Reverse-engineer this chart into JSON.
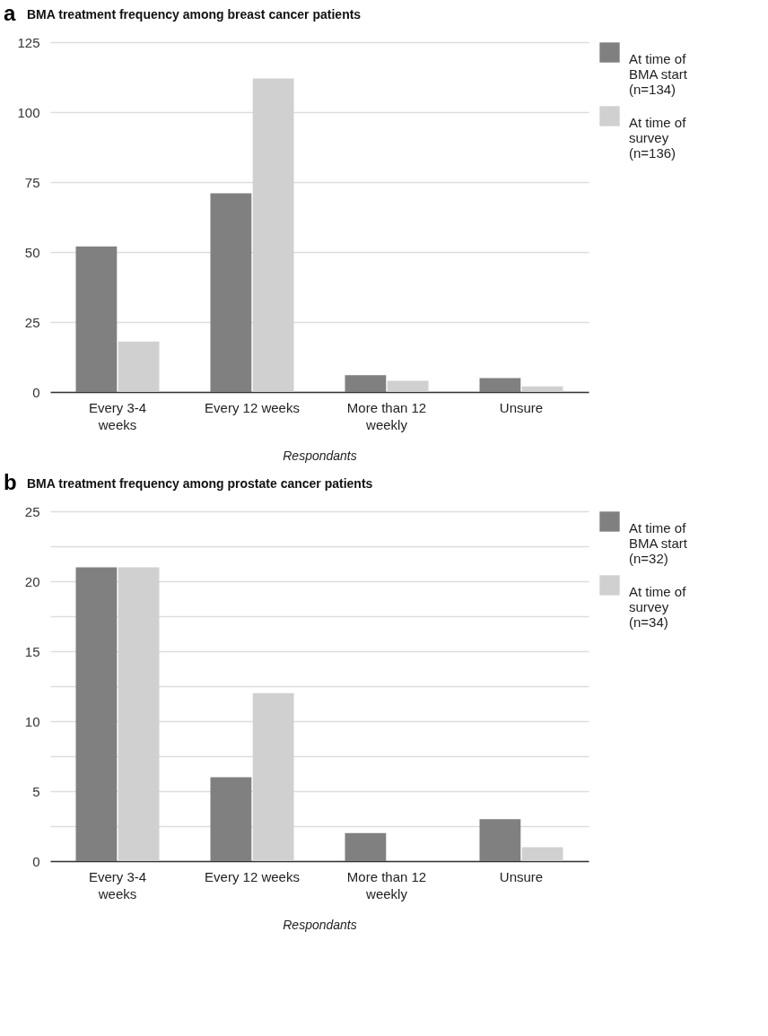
{
  "chart_data": [
    {
      "type": "bar",
      "title": "BMA treatment frequency among breast cancer patients",
      "annotations": [
        "a"
      ],
      "xlabel": "Respondants",
      "categories": [
        "Every 3-4 weeks",
        "Every 12 weeks",
        "More than 12 weekly",
        "Unsure"
      ],
      "series": [
        {
          "name": "At time of BMA start (n=134)",
          "color": "#808080",
          "values": [
            52,
            71,
            6,
            5
          ]
        },
        {
          "name": "At time of survey (n=136)",
          "color": "#d0d0d0",
          "values": [
            18,
            112,
            4,
            2
          ]
        }
      ],
      "ylim": [
        0,
        125
      ],
      "yticks": [
        0,
        25,
        50,
        75,
        100,
        125
      ],
      "grid": "y",
      "legend": "top right"
    },
    {
      "type": "bar",
      "title": "BMA treatment frequency among prostate cancer patients",
      "annotations": [
        "b"
      ],
      "xlabel": "Respondants",
      "categories": [
        "Every 3-4 weeks",
        "Every 12 weeks",
        "More than 12 weekly",
        "Unsure"
      ],
      "series": [
        {
          "name": "At time of BMA start (n=32)",
          "color": "#808080",
          "values": [
            21,
            6,
            2,
            3
          ]
        },
        {
          "name": "At time of survey (n=34)",
          "color": "#d0d0d0",
          "values": [
            21,
            12,
            0,
            1
          ]
        }
      ],
      "ylim": [
        0,
        25
      ],
      "yticks": [
        0,
        {
          "value": 2.5,
          "label": null
        },
        5,
        {
          "value": 7.5,
          "label": null
        },
        10,
        {
          "value": 12.5,
          "label": null
        },
        15,
        {
          "value": 17.5,
          "label": null
        },
        20,
        {
          "value": 22.5,
          "label": null
        },
        25
      ],
      "grid": "y",
      "legend": "top right"
    }
  ]
}
